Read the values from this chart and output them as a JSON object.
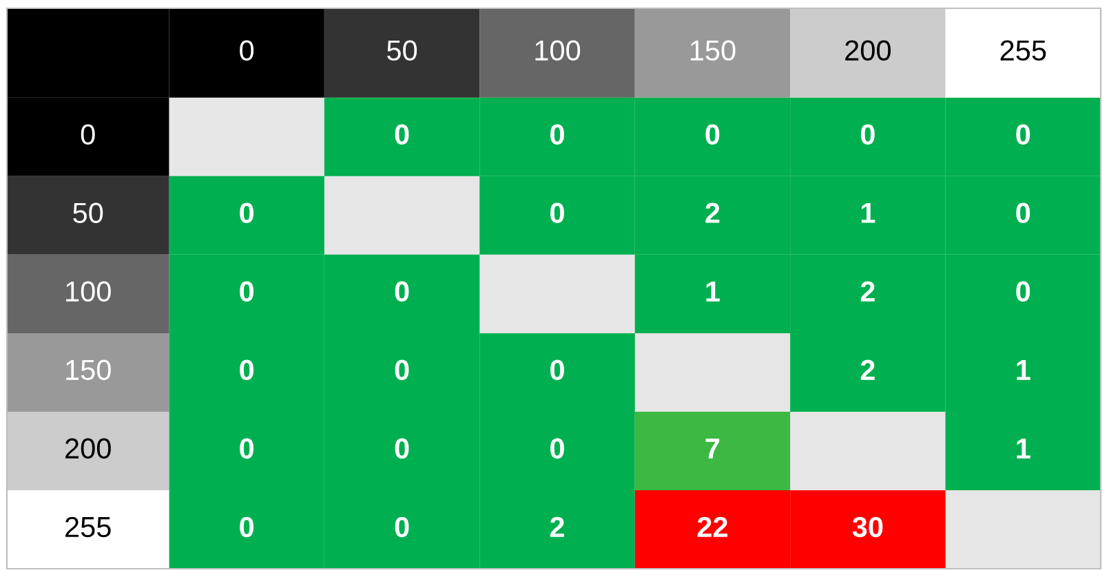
{
  "chart_data": {
    "type": "heatmap",
    "categories": [
      "0",
      "50",
      "100",
      "150",
      "200",
      "255"
    ],
    "y_categories": [
      "0",
      "50",
      "100",
      "150",
      "200",
      "255"
    ],
    "cells": [
      [
        null,
        0,
        0,
        0,
        0,
        0
      ],
      [
        0,
        null,
        0,
        2,
        1,
        0
      ],
      [
        0,
        0,
        null,
        1,
        2,
        0
      ],
      [
        0,
        0,
        0,
        null,
        2,
        1
      ],
      [
        0,
        0,
        0,
        7,
        null,
        1
      ],
      [
        0,
        0,
        2,
        22,
        30,
        null
      ]
    ],
    "colors": [
      [
        null,
        "#00b050",
        "#00b050",
        "#00b050",
        "#00b050",
        "#00b050"
      ],
      [
        "#00b050",
        null,
        "#00b050",
        "#00b050",
        "#00b050",
        "#00b050"
      ],
      [
        "#00b050",
        "#00b050",
        null,
        "#00b050",
        "#00b050",
        "#00b050"
      ],
      [
        "#00b050",
        "#00b050",
        "#00b050",
        null,
        "#00b050",
        "#00b050"
      ],
      [
        "#00b050",
        "#00b050",
        "#00b050",
        "#3cb843",
        null,
        "#00b050"
      ],
      [
        "#00b050",
        "#00b050",
        "#00b050",
        "#ff0000",
        "#ff0000",
        null
      ]
    ],
    "data_labels": true
  }
}
